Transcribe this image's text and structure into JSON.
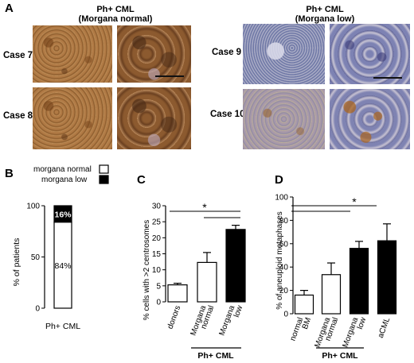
{
  "panel_a": {
    "letter": "A",
    "left_title_line1": "Ph+ CML",
    "left_title_line2": "(Morgana normal)",
    "right_title_line1": "Ph+ CML",
    "right_title_line2": "(Morgana low)",
    "cases": [
      "Case 7",
      "Case 8",
      "Case 9",
      "Case 10"
    ]
  },
  "panel_b": {
    "letter": "B",
    "legend": [
      "morgana normal",
      "morgana low"
    ],
    "pct_low_label": "16%",
    "pct_normal_label": "84%",
    "ylabel": "% of patients",
    "xlabel": "Ph+ CML"
  },
  "panel_c": {
    "letter": "C",
    "ylabel": "% cells with >2 centrosomes",
    "group_label": "Ph+ CML",
    "star": "*"
  },
  "panel_d": {
    "letter": "D",
    "ylabel": "% of aneuploid metaphases",
    "group_label": "Ph+ CML",
    "star": "*"
  },
  "chart_data": [
    {
      "type": "bar",
      "panel": "B",
      "categories": [
        "Ph+ CML"
      ],
      "series": [
        {
          "name": "morgana normal",
          "values": [
            84
          ],
          "color": "#ffffff"
        },
        {
          "name": "morgana low",
          "values": [
            16
          ],
          "color": "#000000"
        }
      ],
      "stacked": true,
      "ylabel": "% of patients",
      "ylim": [
        0,
        100
      ],
      "yticks": [
        0,
        50,
        100
      ]
    },
    {
      "type": "bar",
      "panel": "C",
      "categories": [
        "donors",
        "Morgana normal",
        "Morgana low"
      ],
      "values": [
        5.3,
        12.3,
        22.6
      ],
      "errors": [
        0.5,
        3.1,
        1.3
      ],
      "colors": [
        "#ffffff",
        "#ffffff",
        "#000000"
      ],
      "ylabel": "% cells with >2 centrosomes",
      "ylim": [
        0,
        30
      ],
      "yticks": [
        0,
        5,
        10,
        15,
        20,
        25,
        30
      ]
    },
    {
      "type": "bar",
      "panel": "D",
      "categories": [
        "normal BM",
        "Morgana normal",
        "Morgana low",
        "aCML"
      ],
      "values": [
        16,
        33.5,
        56,
        62.5
      ],
      "errors": [
        4,
        10,
        6,
        14.5
      ],
      "colors": [
        "#ffffff",
        "#ffffff",
        "#000000",
        "#000000"
      ],
      "ylabel": "% of aneuploid metaphases",
      "ylim": [
        0,
        100
      ],
      "yticks": [
        0,
        20,
        40,
        60,
        80,
        100
      ]
    }
  ]
}
